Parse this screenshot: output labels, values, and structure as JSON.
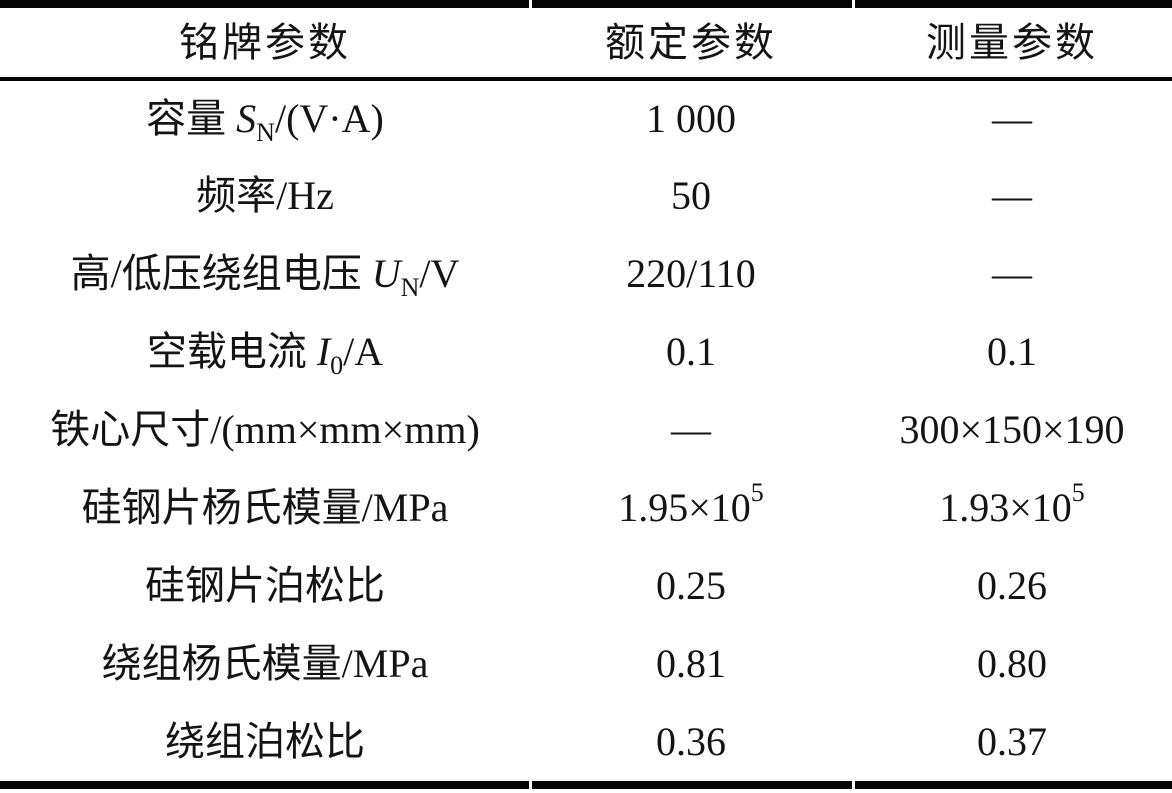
{
  "colors": {
    "text": "#141414",
    "rule": "#050505",
    "background": "#ffffff"
  },
  "table": {
    "headers": [
      {
        "label": "铭牌参数"
      },
      {
        "label": "额定参数"
      },
      {
        "label": "测量参数"
      }
    ],
    "rows": [
      {
        "label": [
          {
            "t": "容量 "
          },
          {
            "t": "S",
            "f": "i"
          },
          {
            "t": "N",
            "f": "sub"
          },
          {
            "t": "/(V·A)"
          }
        ],
        "rated": [
          {
            "t": "1 000"
          }
        ],
        "measured": [
          {
            "t": "—"
          }
        ]
      },
      {
        "label": [
          {
            "t": "频率/Hz"
          }
        ],
        "rated": [
          {
            "t": "50"
          }
        ],
        "measured": [
          {
            "t": "—"
          }
        ]
      },
      {
        "label": [
          {
            "t": "高/低压绕组电压 "
          },
          {
            "t": "U",
            "f": "i"
          },
          {
            "t": "N",
            "f": "sub"
          },
          {
            "t": "/V"
          }
        ],
        "rated": [
          {
            "t": "220/110"
          }
        ],
        "measured": [
          {
            "t": "—"
          }
        ]
      },
      {
        "label": [
          {
            "t": "空载电流 "
          },
          {
            "t": "I",
            "f": "i"
          },
          {
            "t": "0",
            "f": "sub"
          },
          {
            "t": "/A"
          }
        ],
        "rated": [
          {
            "t": "0.1"
          }
        ],
        "measured": [
          {
            "t": "0.1"
          }
        ]
      },
      {
        "label": [
          {
            "t": "铁心尺寸/(mm×mm×mm)"
          }
        ],
        "rated": [
          {
            "t": "—"
          }
        ],
        "measured": [
          {
            "t": "300×150×190"
          }
        ]
      },
      {
        "label": [
          {
            "t": "硅钢片杨氏模量/MPa"
          }
        ],
        "rated": [
          {
            "t": "1.95×10"
          },
          {
            "t": "5",
            "f": "sup"
          }
        ],
        "measured": [
          {
            "t": "1.93×10"
          },
          {
            "t": "5",
            "f": "sup"
          }
        ]
      },
      {
        "label": [
          {
            "t": "硅钢片泊松比"
          }
        ],
        "rated": [
          {
            "t": "0.25"
          }
        ],
        "measured": [
          {
            "t": "0.26"
          }
        ]
      },
      {
        "label": [
          {
            "t": "绕组杨氏模量/MPa"
          }
        ],
        "rated": [
          {
            "t": "0.81"
          }
        ],
        "measured": [
          {
            "t": "0.80"
          }
        ]
      },
      {
        "label": [
          {
            "t": "绕组泊松比"
          }
        ],
        "rated": [
          {
            "t": "0.36"
          }
        ],
        "measured": [
          {
            "t": "0.37"
          }
        ]
      }
    ]
  }
}
